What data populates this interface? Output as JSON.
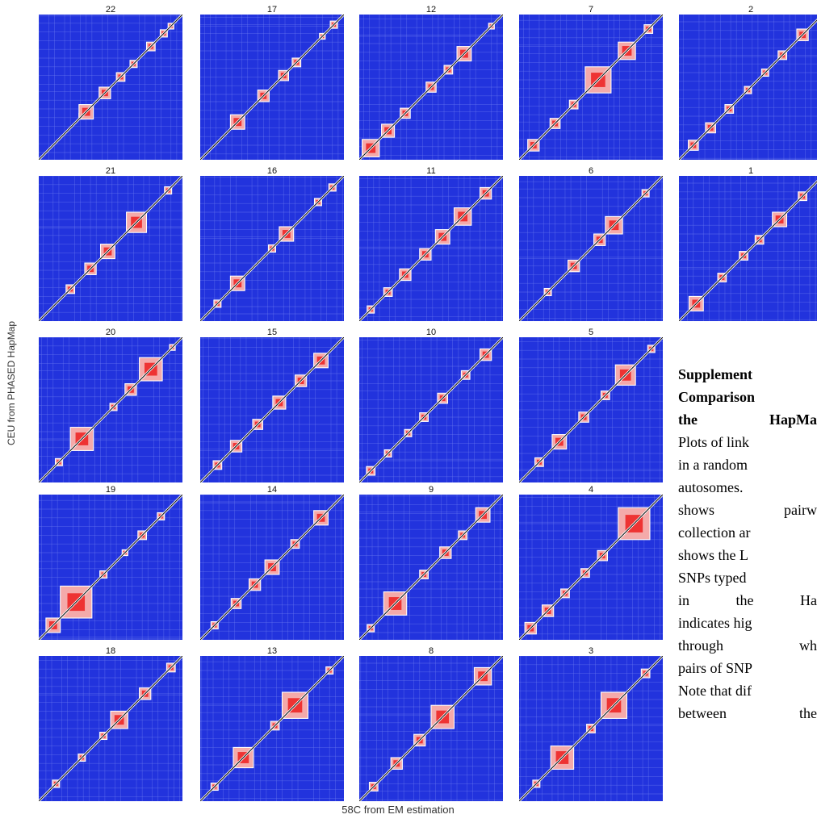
{
  "figure": {
    "y_axis_label": "CEU from PHASED HapMap",
    "x_axis_label": "58C from EM estimation",
    "panels": [
      {
        "label": "22",
        "blocks": [
          [
            0.3,
            0.3,
            0.04
          ],
          [
            0.33,
            0.33,
            0.1
          ],
          [
            0.46,
            0.46,
            0.08
          ],
          [
            0.57,
            0.57,
            0.06
          ],
          [
            0.66,
            0.66,
            0.05
          ],
          [
            0.78,
            0.78,
            0.06
          ],
          [
            0.87,
            0.87,
            0.05
          ],
          [
            0.92,
            0.92,
            0.04
          ]
        ]
      },
      {
        "label": "17",
        "blocks": [
          [
            0.26,
            0.26,
            0.1
          ],
          [
            0.44,
            0.44,
            0.08
          ],
          [
            0.58,
            0.58,
            0.07
          ],
          [
            0.67,
            0.67,
            0.06
          ],
          [
            0.85,
            0.85,
            0.04
          ],
          [
            0.93,
            0.93,
            0.05
          ]
        ]
      },
      {
        "label": "12",
        "blocks": [
          [
            0.08,
            0.08,
            0.12
          ],
          [
            0.2,
            0.2,
            0.09
          ],
          [
            0.32,
            0.32,
            0.07
          ],
          [
            0.5,
            0.5,
            0.07
          ],
          [
            0.62,
            0.62,
            0.06
          ],
          [
            0.73,
            0.73,
            0.1
          ],
          [
            0.92,
            0.92,
            0.04
          ]
        ]
      },
      {
        "label": "7",
        "blocks": [
          [
            0.1,
            0.1,
            0.08
          ],
          [
            0.25,
            0.25,
            0.07
          ],
          [
            0.38,
            0.38,
            0.06
          ],
          [
            0.55,
            0.55,
            0.18
          ],
          [
            0.75,
            0.75,
            0.12
          ],
          [
            0.9,
            0.9,
            0.06
          ]
        ]
      },
      {
        "label": "2",
        "blocks": [
          [
            0.1,
            0.1,
            0.07
          ],
          [
            0.22,
            0.22,
            0.07
          ],
          [
            0.35,
            0.35,
            0.06
          ],
          [
            0.48,
            0.48,
            0.05
          ],
          [
            0.6,
            0.6,
            0.05
          ],
          [
            0.72,
            0.72,
            0.06
          ],
          [
            0.86,
            0.86,
            0.08
          ]
        ]
      },
      {
        "label": "21",
        "blocks": [
          [
            0.22,
            0.22,
            0.06
          ],
          [
            0.36,
            0.36,
            0.08
          ],
          [
            0.48,
            0.48,
            0.1
          ],
          [
            0.68,
            0.68,
            0.14
          ],
          [
            0.9,
            0.9,
            0.05
          ]
        ]
      },
      {
        "label": "16",
        "blocks": [
          [
            0.12,
            0.12,
            0.05
          ],
          [
            0.26,
            0.26,
            0.1
          ],
          [
            0.5,
            0.5,
            0.05
          ],
          [
            0.6,
            0.6,
            0.1
          ],
          [
            0.82,
            0.82,
            0.05
          ],
          [
            0.92,
            0.92,
            0.05
          ]
        ]
      },
      {
        "label": "11",
        "blocks": [
          [
            0.08,
            0.08,
            0.05
          ],
          [
            0.2,
            0.2,
            0.06
          ],
          [
            0.32,
            0.32,
            0.08
          ],
          [
            0.46,
            0.46,
            0.08
          ],
          [
            0.58,
            0.58,
            0.1
          ],
          [
            0.72,
            0.72,
            0.12
          ],
          [
            0.88,
            0.88,
            0.08
          ]
        ]
      },
      {
        "label": "6",
        "blocks": [
          [
            0.2,
            0.2,
            0.05
          ],
          [
            0.38,
            0.38,
            0.08
          ],
          [
            0.56,
            0.56,
            0.08
          ],
          [
            0.66,
            0.66,
            0.12
          ],
          [
            0.88,
            0.88,
            0.05
          ]
        ]
      },
      {
        "label": "1",
        "blocks": [
          [
            0.12,
            0.12,
            0.1
          ],
          [
            0.3,
            0.3,
            0.06
          ],
          [
            0.45,
            0.45,
            0.06
          ],
          [
            0.56,
            0.56,
            0.06
          ],
          [
            0.7,
            0.7,
            0.1
          ],
          [
            0.86,
            0.86,
            0.06
          ]
        ]
      },
      {
        "label": "20",
        "blocks": [
          [
            0.14,
            0.14,
            0.05
          ],
          [
            0.3,
            0.3,
            0.16
          ],
          [
            0.52,
            0.52,
            0.05
          ],
          [
            0.64,
            0.64,
            0.08
          ],
          [
            0.78,
            0.78,
            0.16
          ],
          [
            0.93,
            0.93,
            0.04
          ]
        ]
      },
      {
        "label": "15",
        "blocks": [
          [
            0.12,
            0.12,
            0.06
          ],
          [
            0.25,
            0.25,
            0.08
          ],
          [
            0.4,
            0.4,
            0.07
          ],
          [
            0.55,
            0.55,
            0.09
          ],
          [
            0.7,
            0.7,
            0.08
          ],
          [
            0.84,
            0.84,
            0.1
          ]
        ]
      },
      {
        "label": "10",
        "blocks": [
          [
            0.08,
            0.08,
            0.06
          ],
          [
            0.2,
            0.2,
            0.05
          ],
          [
            0.34,
            0.34,
            0.05
          ],
          [
            0.45,
            0.45,
            0.06
          ],
          [
            0.58,
            0.58,
            0.07
          ],
          [
            0.74,
            0.74,
            0.06
          ],
          [
            0.88,
            0.88,
            0.08
          ]
        ]
      },
      {
        "label": "5",
        "blocks": [
          [
            0.14,
            0.14,
            0.06
          ],
          [
            0.28,
            0.28,
            0.1
          ],
          [
            0.45,
            0.45,
            0.07
          ],
          [
            0.6,
            0.6,
            0.06
          ],
          [
            0.74,
            0.74,
            0.14
          ],
          [
            0.92,
            0.92,
            0.05
          ]
        ]
      },
      {
        "label": "19",
        "blocks": [
          [
            0.1,
            0.1,
            0.1
          ],
          [
            0.26,
            0.26,
            0.22
          ],
          [
            0.45,
            0.45,
            0.05
          ],
          [
            0.6,
            0.6,
            0.04
          ],
          [
            0.72,
            0.72,
            0.06
          ],
          [
            0.85,
            0.85,
            0.05
          ]
        ]
      },
      {
        "label": "14",
        "blocks": [
          [
            0.1,
            0.1,
            0.05
          ],
          [
            0.25,
            0.25,
            0.07
          ],
          [
            0.38,
            0.38,
            0.08
          ],
          [
            0.5,
            0.5,
            0.1
          ],
          [
            0.66,
            0.66,
            0.06
          ],
          [
            0.84,
            0.84,
            0.1
          ]
        ]
      },
      {
        "label": "9",
        "blocks": [
          [
            0.08,
            0.08,
            0.05
          ],
          [
            0.25,
            0.25,
            0.16
          ],
          [
            0.45,
            0.45,
            0.06
          ],
          [
            0.6,
            0.6,
            0.08
          ],
          [
            0.72,
            0.72,
            0.06
          ],
          [
            0.86,
            0.86,
            0.1
          ]
        ]
      },
      {
        "label": "4",
        "blocks": [
          [
            0.08,
            0.08,
            0.08
          ],
          [
            0.2,
            0.2,
            0.08
          ],
          [
            0.32,
            0.32,
            0.06
          ],
          [
            0.46,
            0.46,
            0.06
          ],
          [
            0.58,
            0.58,
            0.07
          ],
          [
            0.8,
            0.8,
            0.22
          ]
        ]
      },
      {
        "label": "18",
        "blocks": [
          [
            0.12,
            0.12,
            0.05
          ],
          [
            0.3,
            0.3,
            0.05
          ],
          [
            0.45,
            0.45,
            0.05
          ],
          [
            0.56,
            0.56,
            0.12
          ],
          [
            0.74,
            0.74,
            0.08
          ],
          [
            0.92,
            0.92,
            0.06
          ]
        ]
      },
      {
        "label": "13",
        "blocks": [
          [
            0.1,
            0.1,
            0.05
          ],
          [
            0.3,
            0.3,
            0.14
          ],
          [
            0.52,
            0.52,
            0.06
          ],
          [
            0.66,
            0.66,
            0.18
          ],
          [
            0.9,
            0.9,
            0.05
          ]
        ]
      },
      {
        "label": "8",
        "blocks": [
          [
            0.1,
            0.1,
            0.06
          ],
          [
            0.26,
            0.26,
            0.08
          ],
          [
            0.42,
            0.42,
            0.08
          ],
          [
            0.58,
            0.58,
            0.16
          ],
          [
            0.86,
            0.86,
            0.12
          ]
        ]
      },
      {
        "label": "3",
        "blocks": [
          [
            0.12,
            0.12,
            0.05
          ],
          [
            0.3,
            0.3,
            0.16
          ],
          [
            0.5,
            0.5,
            0.06
          ],
          [
            0.66,
            0.66,
            0.18
          ],
          [
            0.88,
            0.88,
            0.06
          ]
        ]
      }
    ]
  },
  "caption": {
    "lines": [
      "Supplement",
      "Comparison",
      "the HapMa",
      "Plots of link",
      "in a random",
      "autosomes.",
      "shows pairw",
      "collection ar",
      "shows the L",
      "SNPs typed",
      "in the Ha",
      "indicates hig",
      "through wh",
      "pairs of SNP",
      "Note that dif",
      "between the"
    ]
  },
  "colors": {
    "background_blue": "#2233dd",
    "high_ld_red": "#ee3333",
    "mid_ld_pink": "#f4aaaa",
    "low_ld_white": "#ffffff",
    "diagonal": "#111111"
  }
}
